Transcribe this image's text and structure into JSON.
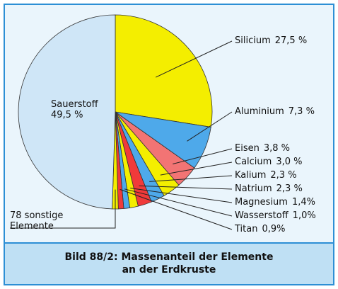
{
  "chart_data": {
    "type": "pie",
    "title": "Bild 88/2: Massenanteil der Elemente\nan der Erdkruste",
    "categories": [
      "Silicium",
      "Aluminium",
      "Eisen",
      "Calcium",
      "Kalium",
      "Natrium",
      "Magnesium",
      "Wasserstoff",
      "Titan",
      "78 sonstige\nElemente",
      "Sauerstoff"
    ],
    "values": [
      27.5,
      7.3,
      3.8,
      3.0,
      2.3,
      2.3,
      1.4,
      1.0,
      0.9,
      1.0,
      49.5
    ],
    "value_labels": [
      "27,5 %",
      "7,3 %",
      "3,8 %",
      "3,0 %",
      "2,3 %",
      "2,3 %",
      "1,4%",
      "1,0%",
      "0,9%",
      null,
      "49,5 %"
    ],
    "colors": [
      "#f4ee00",
      "#4ea9ea",
      "#f27474",
      "#f4ee00",
      "#4ea9ea",
      "#f03a3a",
      "#f4ee00",
      "#4ea9ea",
      "#f03a3a",
      "#f4ee00",
      "#cfe6f7"
    ]
  }
}
